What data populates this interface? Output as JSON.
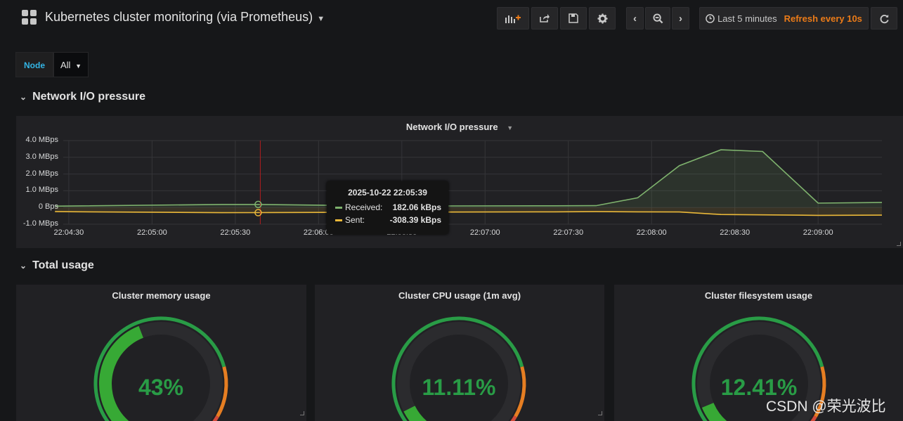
{
  "header": {
    "title": "Kubernetes cluster monitoring (via Prometheus)",
    "time_range": "Last 5 minutes",
    "refresh": "Refresh every 10s"
  },
  "variables": {
    "label": "Node",
    "value": "All"
  },
  "rows": [
    {
      "title": "Network I/O pressure"
    },
    {
      "title": "Total usage"
    }
  ],
  "graph_panel": {
    "title": "Network I/O pressure",
    "tooltip": {
      "time": "2025-10-22 22:05:39",
      "items": [
        {
          "label": "Received:",
          "value": "182.06 kBps",
          "color": "#7eb26d"
        },
        {
          "label": "Sent:",
          "value": "-308.39 kBps",
          "color": "#eab839"
        }
      ]
    }
  },
  "gauges": [
    {
      "title": "Cluster memory usage",
      "value_text": "43%",
      "value": 43
    },
    {
      "title": "Cluster CPU usage (1m avg)",
      "value_text": "11.11%",
      "value": 11.11
    },
    {
      "title": "Cluster filesystem usage",
      "value_text": "12.41%",
      "value": 12.41
    }
  ],
  "chart_data": {
    "type": "line",
    "title": "Network I/O pressure",
    "y_ticks": [
      "4.0 MBps",
      "3.0 MBps",
      "2.0 MBps",
      "1.0 MBps",
      "0 Bps",
      "-1.0 MBps"
    ],
    "x_ticks": [
      "22:04:30",
      "22:05:00",
      "22:05:30",
      "22:06:00",
      "22:06:30",
      "22:07:00",
      "22:07:30",
      "22:08:00",
      "22:08:30",
      "22:09:00"
    ],
    "ylim": [
      -1000,
      4000
    ],
    "y_unit": "kBps",
    "grid": true,
    "x": [
      "22:04:25",
      "22:05:25",
      "22:05:39",
      "22:06:25",
      "22:07:25",
      "22:07:40",
      "22:07:55",
      "22:08:10",
      "22:08:25",
      "22:08:40",
      "22:09:00",
      "22:09:23"
    ],
    "series": [
      {
        "name": "Received",
        "color": "#7eb26d",
        "values": [
          80,
          180,
          182.06,
          90,
          100,
          110,
          580,
          2500,
          3450,
          3350,
          260,
          300
        ]
      },
      {
        "name": "Sent",
        "color": "#eab839",
        "values": [
          -250,
          -310,
          -308.39,
          -280,
          -260,
          -250,
          -260,
          -270,
          -420,
          -440,
          -470,
          -460
        ]
      }
    ],
    "hover_time": "22:05:39"
  },
  "watermark": "CSDN @荣光波比"
}
